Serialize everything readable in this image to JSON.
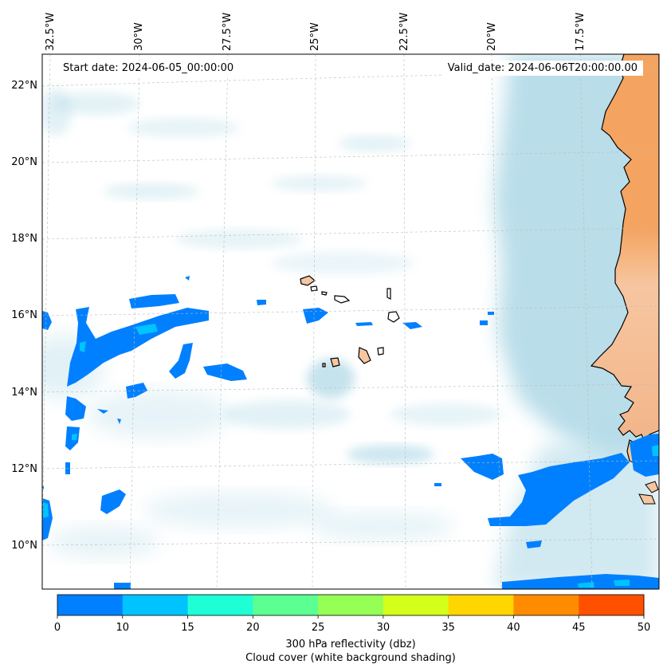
{
  "map": {
    "start_date": "Start date: 2024-06-05_00:00:00",
    "valid_date": "Valid_date: 2024-06-06T20:00:00.00",
    "lon_labels": [
      "32.5°W",
      "30°W",
      "27.5°W",
      "25°W",
      "22.5°W",
      "20°W",
      "17.5°W"
    ],
    "lat_labels": [
      "22°N",
      "20°N",
      "18°N",
      "16°N",
      "14°N",
      "12°N",
      "10°N"
    ],
    "extent": {
      "lon_min": -32.8,
      "lon_max": -15.4,
      "lat_min": 8.9,
      "lat_max": 22.8
    },
    "land_color": "#f4a460",
    "reflectivity_color": "#0080ff",
    "cloud_color": "#add8e6"
  },
  "colorbar": {
    "ticks": [
      "0",
      "10",
      "15",
      "20",
      "25",
      "30",
      "35",
      "40",
      "45",
      "50"
    ],
    "colors": [
      "#0080ff",
      "#00c3ff",
      "#1effd6",
      "#5cff92",
      "#96ff55",
      "#d3ff1a",
      "#ffd600",
      "#ff8c00",
      "#ff5000"
    ],
    "label_line1": "300 hPa reflectivity (dbz)",
    "label_line2": "Cloud cover (white background shading)"
  }
}
